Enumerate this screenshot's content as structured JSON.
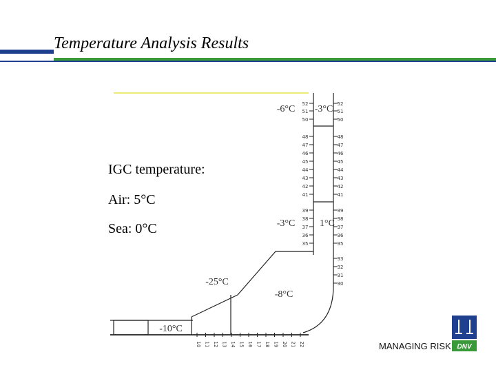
{
  "header": {
    "title": "Temperature Analysis Results"
  },
  "notes": [
    "IGC temperature:",
    "Air: 5°C",
    "Sea: 0°C"
  ],
  "temperatures": [
    "-6°C",
    "-3°C",
    "-3°C",
    "1°C",
    "-25°C",
    "-8°C",
    "-10°C"
  ],
  "frames": {
    "inner": [
      52,
      51,
      50,
      48,
      47,
      46,
      45,
      44,
      43,
      42,
      41,
      39,
      38,
      37,
      36,
      35
    ],
    "outer": [
      52,
      51,
      50,
      48,
      47,
      46,
      45,
      44,
      43,
      42,
      41,
      39,
      38,
      37,
      36,
      35,
      33,
      32,
      31,
      30
    ],
    "bottom": [
      10,
      11,
      12,
      13,
      14,
      15,
      16,
      17,
      18,
      19,
      20,
      21,
      22
    ]
  },
  "footer": {
    "tagline": "MANAGING RISK",
    "logo": "DNV"
  }
}
